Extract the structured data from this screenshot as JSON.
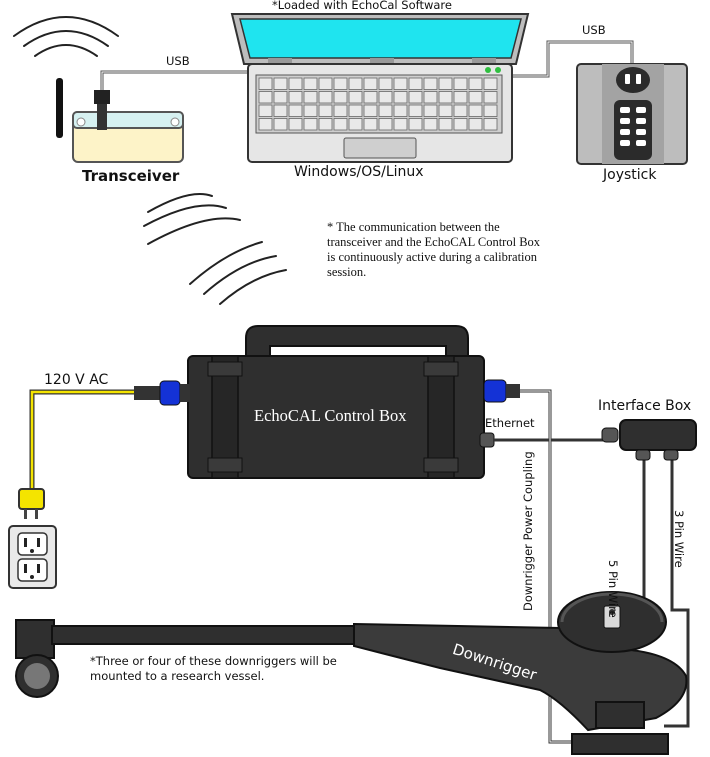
{
  "top_note": "*Loaded with EchoCal Software",
  "labels": {
    "usb_left": "USB",
    "usb_right": "USB",
    "transceiver": "Transceiver",
    "computer": "Windows/OS/Linux",
    "joystick": "Joystick",
    "power": "120 V AC",
    "control_box": "EchoCAL Control Box",
    "ethernet": "Ethernet",
    "interface_box": "Interface Box",
    "power_coupling": "Downrigger Power Coupling",
    "five_pin": "5 Pin Wire",
    "three_pin": "3 Pin Wire",
    "downrigger": "Downrigger"
  },
  "comm_note": [
    "* The communication between the",
    "transceiver and the EchoCAL Control Box",
    "is continuously active during a calibration",
    "session."
  ],
  "vessel_note": [
    "*Three or four of these downriggers will be",
    "mounted to a research vessel."
  ],
  "colors": {
    "screen": "#1fe4ef",
    "laptop_body": "#c9c9c9",
    "device_dark": "#2f2f2f",
    "connector_blue": "#1432d6",
    "ac_wire": "#f4e400",
    "transceiver_body": "#fdf3c8",
    "transceiver_top": "#d6f1f1"
  }
}
